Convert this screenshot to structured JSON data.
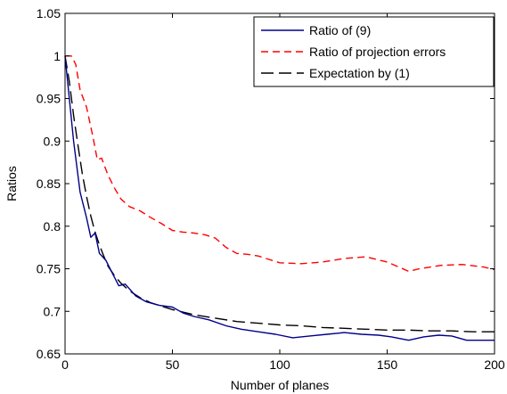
{
  "chart_data": {
    "type": "line",
    "title": "",
    "xlabel": "Number of planes",
    "ylabel": "Ratios",
    "xlim": [
      0,
      200
    ],
    "ylim": [
      0.65,
      1.05
    ],
    "x_ticks": [
      0,
      50,
      100,
      150,
      200
    ],
    "x_tick_labels": [
      "0",
      "50",
      "100",
      "150",
      "200"
    ],
    "y_ticks": [
      0.65,
      0.7,
      0.75,
      0.8,
      0.85,
      0.9,
      0.95,
      1,
      1.05
    ],
    "y_tick_labels": [
      "0.65",
      "0.7",
      "0.75",
      "0.8",
      "0.85",
      "0.9",
      "0.95",
      "1",
      "1.05"
    ],
    "grid": false,
    "legend_position": "top-right",
    "series": [
      {
        "name": "Ratio of (9)",
        "color": "#00008b",
        "dash": "solid",
        "points": [
          [
            0,
            1.0
          ],
          [
            2,
            0.95
          ],
          [
            4,
            0.9
          ],
          [
            7,
            0.84
          ],
          [
            10,
            0.81
          ],
          [
            12,
            0.787
          ],
          [
            14,
            0.792
          ],
          [
            16,
            0.768
          ],
          [
            19,
            0.76
          ],
          [
            22,
            0.745
          ],
          [
            25,
            0.73
          ],
          [
            28,
            0.732
          ],
          [
            33,
            0.718
          ],
          [
            38,
            0.711
          ],
          [
            44,
            0.707
          ],
          [
            50,
            0.705
          ],
          [
            55,
            0.698
          ],
          [
            60,
            0.694
          ],
          [
            67,
            0.69
          ],
          [
            75,
            0.683
          ],
          [
            82,
            0.679
          ],
          [
            90,
            0.676
          ],
          [
            98,
            0.673
          ],
          [
            106,
            0.669
          ],
          [
            114,
            0.671
          ],
          [
            122,
            0.673
          ],
          [
            130,
            0.675
          ],
          [
            138,
            0.673
          ],
          [
            146,
            0.672
          ],
          [
            152,
            0.67
          ],
          [
            160,
            0.666
          ],
          [
            167,
            0.67
          ],
          [
            174,
            0.672
          ],
          [
            180,
            0.671
          ],
          [
            187,
            0.666
          ],
          [
            194,
            0.666
          ],
          [
            200,
            0.666
          ]
        ]
      },
      {
        "name": "Ratio of projection errors",
        "color": "#ff0000",
        "dash": "short",
        "points": [
          [
            0,
            1.0
          ],
          [
            3,
            1.0
          ],
          [
            5,
            0.99
          ],
          [
            7,
            0.96
          ],
          [
            10,
            0.94
          ],
          [
            13,
            0.905
          ],
          [
            15,
            0.878
          ],
          [
            17,
            0.88
          ],
          [
            20,
            0.86
          ],
          [
            23,
            0.845
          ],
          [
            26,
            0.832
          ],
          [
            30,
            0.823
          ],
          [
            35,
            0.818
          ],
          [
            40,
            0.81
          ],
          [
            45,
            0.803
          ],
          [
            50,
            0.795
          ],
          [
            55,
            0.793
          ],
          [
            60,
            0.792
          ],
          [
            65,
            0.79
          ],
          [
            70,
            0.786
          ],
          [
            75,
            0.775
          ],
          [
            80,
            0.768
          ],
          [
            85,
            0.767
          ],
          [
            90,
            0.765
          ],
          [
            95,
            0.761
          ],
          [
            100,
            0.757
          ],
          [
            110,
            0.756
          ],
          [
            120,
            0.758
          ],
          [
            130,
            0.762
          ],
          [
            140,
            0.764
          ],
          [
            150,
            0.758
          ],
          [
            160,
            0.747
          ],
          [
            165,
            0.75
          ],
          [
            175,
            0.754
          ],
          [
            185,
            0.755
          ],
          [
            195,
            0.752
          ],
          [
            200,
            0.749
          ]
        ]
      },
      {
        "name": "Expectation by (1)",
        "color": "#000000",
        "dash": "long",
        "points": [
          [
            0,
            1.0
          ],
          [
            2,
            0.97
          ],
          [
            4,
            0.93
          ],
          [
            6,
            0.895
          ],
          [
            8,
            0.862
          ],
          [
            10,
            0.835
          ],
          [
            12,
            0.812
          ],
          [
            14,
            0.793
          ],
          [
            16,
            0.778
          ],
          [
            18,
            0.765
          ],
          [
            20,
            0.753
          ],
          [
            23,
            0.742
          ],
          [
            26,
            0.733
          ],
          [
            30,
            0.724
          ],
          [
            35,
            0.716
          ],
          [
            40,
            0.71
          ],
          [
            45,
            0.706
          ],
          [
            50,
            0.702
          ],
          [
            60,
            0.696
          ],
          [
            70,
            0.692
          ],
          [
            80,
            0.688
          ],
          [
            90,
            0.686
          ],
          [
            100,
            0.684
          ],
          [
            110,
            0.683
          ],
          [
            120,
            0.681
          ],
          [
            130,
            0.68
          ],
          [
            140,
            0.679
          ],
          [
            150,
            0.678
          ],
          [
            160,
            0.678
          ],
          [
            170,
            0.677
          ],
          [
            180,
            0.677
          ],
          [
            190,
            0.676
          ],
          [
            200,
            0.676
          ]
        ]
      }
    ]
  }
}
